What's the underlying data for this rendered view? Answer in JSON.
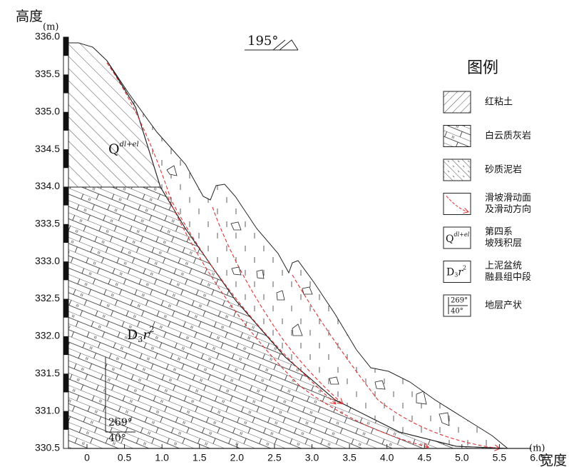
{
  "y_axis": {
    "title": "高度",
    "unit": "(m)",
    "ticks": [
      "336.0",
      "335.5",
      "335.0",
      "334.5",
      "334.0",
      "333.5",
      "333.0",
      "332.5",
      "332.0",
      "331.5",
      "331.0",
      "330.5"
    ]
  },
  "x_axis": {
    "title": "宽度",
    "unit": "(m)",
    "ticks": [
      "0",
      "0.5",
      "1.0",
      "1.5",
      "2.0",
      "2.5",
      "3.0",
      "3.5",
      "4.0",
      "4.5",
      "5.0",
      "5.5",
      "6.0"
    ]
  },
  "orientation": "195°",
  "labels": {
    "quaternary": {
      "base": "Q",
      "sup": "dl+el"
    },
    "formation": {
      "base": "D",
      "sub": "3",
      "mid": "r",
      "sup": "2"
    },
    "attitude": {
      "strike": "269°",
      "dip": "40°"
    }
  },
  "legend": {
    "title": "图例",
    "items": [
      {
        "lines": [
          "红粘土"
        ]
      },
      {
        "lines": [
          "白云质灰岩"
        ]
      },
      {
        "lines": [
          "砂质泥岩"
        ]
      },
      {
        "lines": [
          "滑坡滑动面",
          "及滑动方向"
        ]
      },
      {
        "lines": [
          "第四系",
          "坡残积层"
        ]
      },
      {
        "lines": [
          "上泥盆统",
          "融县组中段"
        ]
      },
      {
        "lines": [
          "地层产状"
        ]
      }
    ]
  }
}
